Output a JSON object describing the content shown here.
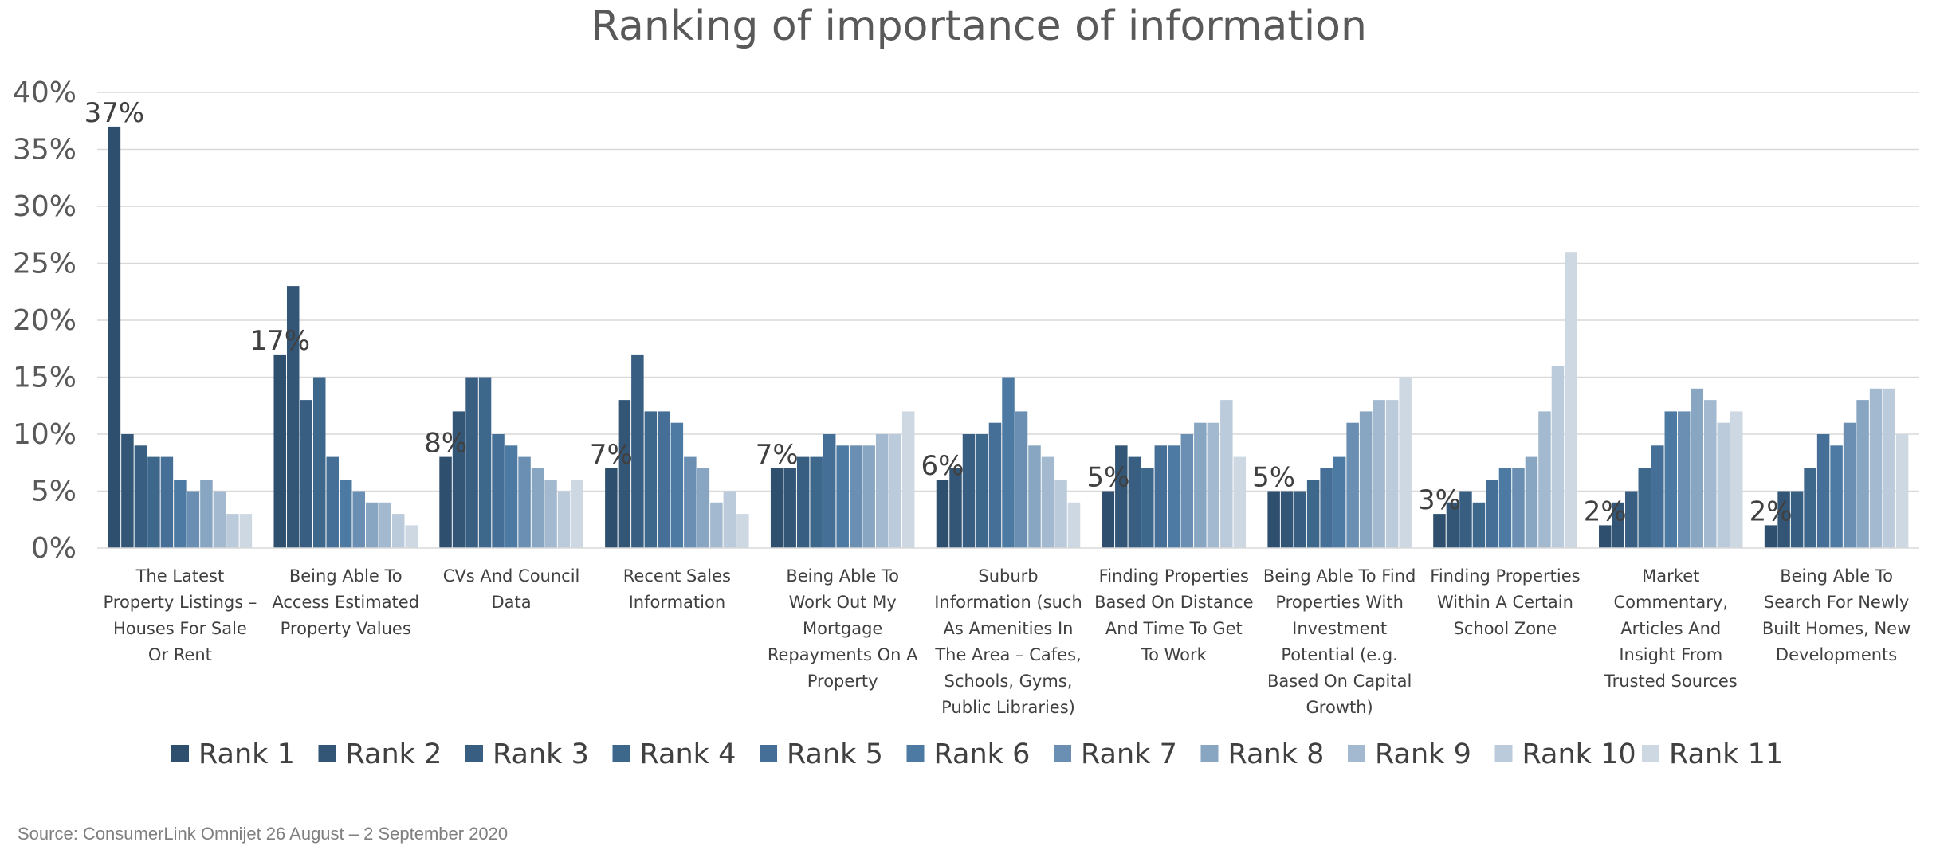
{
  "chart_data": {
    "type": "bar",
    "title": "Ranking of importance of information",
    "xlabel": "",
    "ylabel": "",
    "ylim": [
      0,
      40
    ],
    "y_ticks": [
      "0%",
      "5%",
      "10%",
      "15%",
      "20%",
      "25%",
      "30%",
      "35%",
      "40%"
    ],
    "y_tick_values": [
      0,
      5,
      10,
      15,
      20,
      25,
      30,
      35,
      40
    ],
    "grid": true,
    "legend_position": "bottom",
    "categories": [
      "The Latest Property Listings – Houses For Sale Or Rent",
      "Being Able To Access Estimated Property Values",
      "CVs And Council Data",
      "Recent Sales Information",
      "Being Able To Work Out My Mortgage Repayments On A Property",
      "Suburb Information (such As Amenities In The Area – Cafes, Schools, Gyms, Public Libraries)",
      "Finding Properties Based On Distance And Time To Get To Work",
      "Being Able To Find Properties With Investment Potential (e.g. Based On Capital Growth)",
      "Finding Properties Within A Certain School Zone",
      "Market Commentary, Articles And Insight From Trusted Sources",
      "Being Able To Search For Newly Built Homes, New Developments"
    ],
    "category_label_lines": [
      [
        "The Latest",
        "Property Listings –",
        "Houses For Sale",
        "Or Rent"
      ],
      [
        "Being Able To",
        "Access Estimated",
        "Property Values"
      ],
      [
        "CVs And Council",
        "Data"
      ],
      [
        "Recent Sales",
        "Information"
      ],
      [
        "Being Able To",
        "Work Out My",
        "Mortgage",
        "Repayments On A",
        "Property"
      ],
      [
        "Suburb",
        "Information (such",
        "As Amenities In",
        "The Area – Cafes,",
        "Schools, Gyms,",
        "Public Libraries)"
      ],
      [
        "Finding Properties",
        "Based On Distance",
        "And Time To Get",
        "To Work"
      ],
      [
        "Being Able To Find",
        "Properties With",
        "Investment",
        "Potential (e.g.",
        "Based On Capital",
        "Growth)"
      ],
      [
        "Finding Properties",
        "Within A Certain",
        "School Zone"
      ],
      [
        "Market",
        "Commentary,",
        "Articles And",
        "Insight From",
        "Trusted Sources"
      ],
      [
        "Being Able To",
        "Search For Newly",
        "Built Homes, New",
        "Developments"
      ]
    ],
    "series": [
      {
        "name": "Rank 1",
        "color": "#2f4f6f",
        "values": [
          37,
          17,
          8,
          7,
          7,
          6,
          5,
          5,
          3,
          2,
          2
        ],
        "data_labels": [
          "37%",
          "17%",
          "8%",
          "7%",
          "7%",
          "6%",
          "5%",
          "5%",
          "3%",
          "2%",
          "2%"
        ]
      },
      {
        "name": "Rank 2",
        "color": "#335677",
        "values": [
          10,
          23,
          12,
          13,
          7,
          7,
          9,
          5,
          4,
          4,
          5
        ]
      },
      {
        "name": "Rank 3",
        "color": "#385e82",
        "values": [
          9,
          13,
          15,
          17,
          8,
          10,
          8,
          5,
          5,
          5,
          5
        ]
      },
      {
        "name": "Rank 4",
        "color": "#3e678c",
        "values": [
          8,
          15,
          15,
          12,
          8,
          10,
          7,
          6,
          4,
          7,
          7
        ]
      },
      {
        "name": "Rank 5",
        "color": "#456f96",
        "values": [
          8,
          8,
          10,
          12,
          10,
          11,
          9,
          7,
          6,
          9,
          10
        ]
      },
      {
        "name": "Rank 6",
        "color": "#4d7aa3",
        "values": [
          6,
          6,
          9,
          11,
          9,
          15,
          9,
          8,
          7,
          12,
          9
        ]
      },
      {
        "name": "Rank 7",
        "color": "#6a8fb3",
        "values": [
          5,
          5,
          8,
          8,
          9,
          12,
          10,
          11,
          7,
          12,
          11
        ]
      },
      {
        "name": "Rank 8",
        "color": "#88a6c2",
        "values": [
          6,
          4,
          7,
          7,
          9,
          9,
          11,
          12,
          8,
          14,
          13
        ]
      },
      {
        "name": "Rank 9",
        "color": "#a3b9cf",
        "values": [
          5,
          4,
          6,
          4,
          10,
          8,
          11,
          13,
          12,
          13,
          14
        ]
      },
      {
        "name": "Rank 10",
        "color": "#bccbdb",
        "values": [
          3,
          3,
          5,
          5,
          10,
          6,
          13,
          13,
          16,
          11,
          14
        ]
      },
      {
        "name": "Rank 11",
        "color": "#cdd8e3",
        "values": [
          3,
          2,
          6,
          3,
          12,
          4,
          8,
          15,
          26,
          12,
          10
        ]
      }
    ],
    "source": "Source: ConsumerLink Omnijet 26 August – 2 September 2020"
  }
}
